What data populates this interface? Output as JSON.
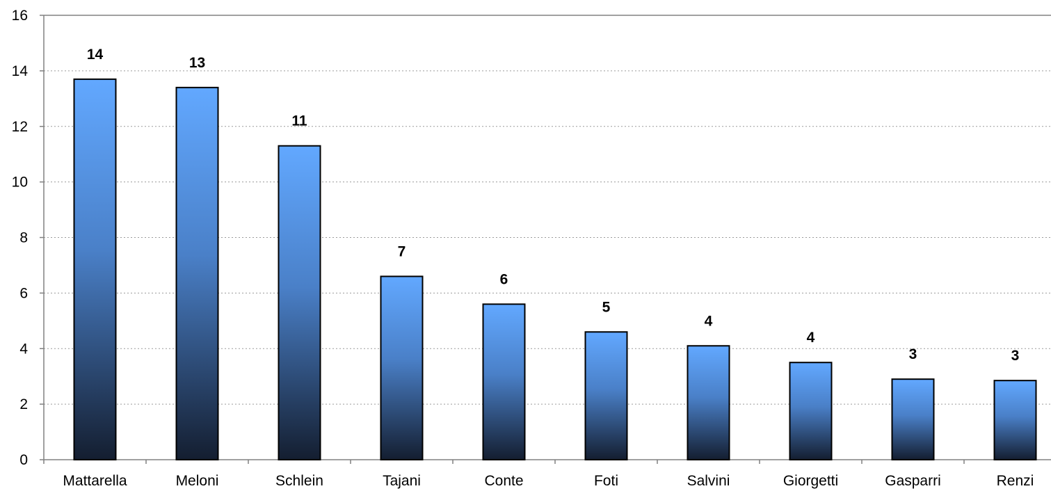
{
  "chart_data": {
    "type": "bar",
    "title": "",
    "xlabel": "",
    "ylabel": "",
    "categories": [
      "Mattarella",
      "Meloni",
      "Schlein",
      "Tajani",
      "Conte",
      "Foti",
      "Salvini",
      "Giorgetti",
      "Gasparri",
      "Renzi"
    ],
    "values": [
      13.7,
      13.4,
      11.3,
      6.6,
      5.6,
      4.6,
      4.1,
      3.5,
      2.9,
      2.85
    ],
    "data_labels": [
      "14",
      "13",
      "11",
      "7",
      "6",
      "5",
      "4",
      "4",
      "3",
      "3"
    ],
    "ylim": [
      0,
      16
    ],
    "yticks": [
      "0",
      "2",
      "4",
      "6",
      "8",
      "10",
      "12",
      "14",
      "16"
    ],
    "grid": true,
    "legend": "none",
    "colors": {
      "bar_top": "#62a8ff",
      "bar_mid": "#4a80c8",
      "bar_bottom": "#141e30",
      "outline": "#000000"
    }
  }
}
